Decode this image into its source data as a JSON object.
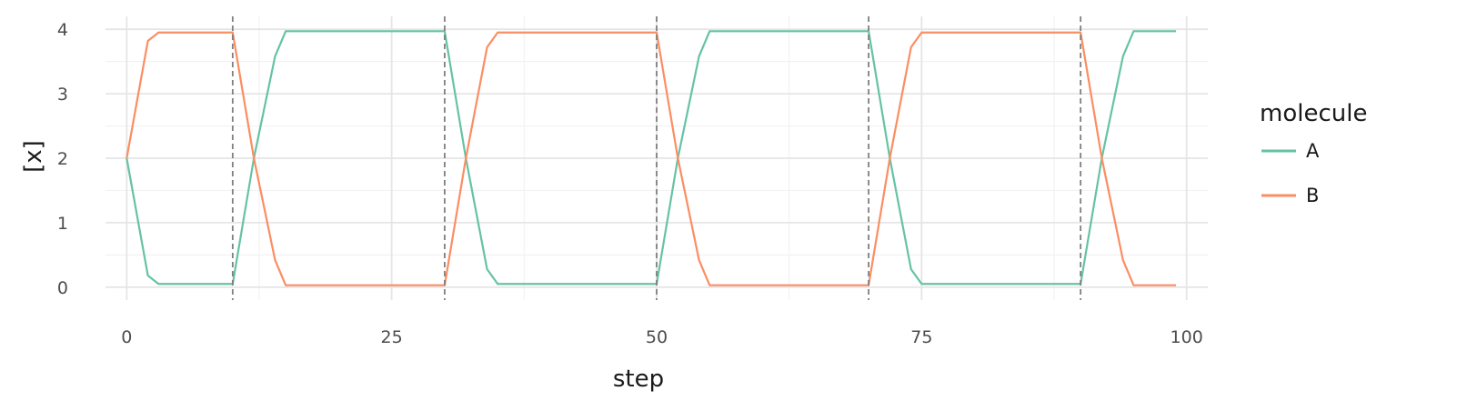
{
  "chart_data": {
    "type": "line",
    "xlabel": "step",
    "ylabel": "[x]",
    "xlim": [
      -2,
      102
    ],
    "ylim": [
      -0.2,
      4.2
    ],
    "x_ticks": [
      0,
      25,
      50,
      75,
      100
    ],
    "y_ticks": [
      0,
      1,
      2,
      3,
      4
    ],
    "grid": true,
    "legend": {
      "title": "molecule",
      "position": "right"
    },
    "vlines": [
      10,
      30,
      50,
      70,
      90
    ],
    "vline_color": "#7f7f7f",
    "series": [
      {
        "name": "A",
        "color": "#66c2a5",
        "x": [
          0,
          2,
          3,
          10,
          12,
          14,
          15,
          30,
          32,
          34,
          35,
          50,
          52,
          54,
          55,
          70,
          72,
          74,
          75,
          90,
          92,
          94,
          95,
          99
        ],
        "y": [
          2,
          0.18,
          0.05,
          0.05,
          2,
          3.58,
          3.97,
          3.97,
          2,
          0.28,
          0.05,
          0.05,
          2,
          3.58,
          3.97,
          3.97,
          2,
          0.28,
          0.05,
          0.05,
          2,
          3.58,
          3.97,
          3.97
        ]
      },
      {
        "name": "B",
        "color": "#fc8d62",
        "x": [
          0,
          2,
          3,
          10,
          12,
          14,
          15,
          30,
          32,
          34,
          35,
          50,
          52,
          54,
          55,
          70,
          72,
          74,
          75,
          90,
          92,
          94,
          95,
          99
        ],
        "y": [
          2,
          3.82,
          3.95,
          3.95,
          2,
          0.42,
          0.03,
          0.03,
          2,
          3.72,
          3.95,
          3.95,
          2,
          0.42,
          0.03,
          0.03,
          2,
          3.72,
          3.95,
          3.95,
          2,
          0.42,
          0.03,
          0.03
        ]
      }
    ]
  }
}
